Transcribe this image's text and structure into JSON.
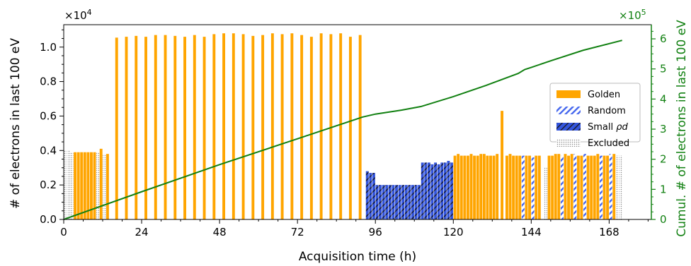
{
  "chart_data": {
    "type": "bar",
    "xlabel": "Acquisition time (h)",
    "ylabel": "# of electrons in last 100 eV",
    "y2label": "Cumul. # of electrons in last 100 eV",
    "y_multiplier": "×10^4",
    "y2_multiplier": "×10^5",
    "xlim": [
      0,
      181
    ],
    "ylim": [
      0,
      1.13
    ],
    "y2lim": [
      0,
      6.47
    ],
    "x_ticks": [
      0,
      24,
      48,
      72,
      96,
      120,
      144,
      168
    ],
    "y_ticks": [
      "0.0",
      "0.2",
      "0.4",
      "0.6",
      "0.8",
      "1.0"
    ],
    "y2_ticks": [
      "0",
      "1",
      "2",
      "3",
      "4",
      "5",
      "6"
    ],
    "bar_width_h": 0.85,
    "legend": {
      "placement": "right",
      "entries": [
        {
          "label": "Golden",
          "style": "golden"
        },
        {
          "label": "Random",
          "style": "random"
        },
        {
          "label": "Small ρd",
          "style": "small"
        },
        {
          "label": "Excluded",
          "style": "excluded"
        }
      ]
    },
    "colors": {
      "golden": "#FFA500",
      "random": "#4466EE",
      "small": "#3355DD",
      "excluded": "#888888",
      "cumulative": "#118011"
    },
    "bars": [
      {
        "x": 0.5,
        "v": 0.4,
        "c": "excluded"
      },
      {
        "x": 1.5,
        "v": 0.4,
        "c": "excluded"
      },
      {
        "x": 2.5,
        "v": 0.39,
        "c": "excluded"
      },
      {
        "x": 3.5,
        "v": 0.39,
        "c": "golden"
      },
      {
        "x": 4.5,
        "v": 0.39,
        "c": "golden"
      },
      {
        "x": 5.5,
        "v": 0.39,
        "c": "golden"
      },
      {
        "x": 6.5,
        "v": 0.39,
        "c": "golden"
      },
      {
        "x": 7.5,
        "v": 0.39,
        "c": "golden"
      },
      {
        "x": 8.5,
        "v": 0.39,
        "c": "golden"
      },
      {
        "x": 9.5,
        "v": 0.39,
        "c": "golden"
      },
      {
        "x": 10.5,
        "v": 0.39,
        "c": "excluded"
      },
      {
        "x": 11.5,
        "v": 0.41,
        "c": "golden"
      },
      {
        "x": 12.5,
        "v": 0.38,
        "c": "excluded"
      },
      {
        "x": 13.5,
        "v": 0.38,
        "c": "golden"
      },
      {
        "x": 16.3,
        "v": 1.055,
        "c": "golden"
      },
      {
        "x": 19.3,
        "v": 1.06,
        "c": "golden"
      },
      {
        "x": 22.3,
        "v": 1.065,
        "c": "golden"
      },
      {
        "x": 25.3,
        "v": 1.06,
        "c": "golden"
      },
      {
        "x": 28.3,
        "v": 1.07,
        "c": "golden"
      },
      {
        "x": 31.3,
        "v": 1.07,
        "c": "golden"
      },
      {
        "x": 34.3,
        "v": 1.065,
        "c": "golden"
      },
      {
        "x": 37.3,
        "v": 1.06,
        "c": "golden"
      },
      {
        "x": 40.3,
        "v": 1.07,
        "c": "golden"
      },
      {
        "x": 43.3,
        "v": 1.06,
        "c": "golden"
      },
      {
        "x": 46.3,
        "v": 1.075,
        "c": "golden"
      },
      {
        "x": 49.3,
        "v": 1.08,
        "c": "golden"
      },
      {
        "x": 52.3,
        "v": 1.08,
        "c": "golden"
      },
      {
        "x": 55.3,
        "v": 1.075,
        "c": "golden"
      },
      {
        "x": 58.3,
        "v": 1.065,
        "c": "golden"
      },
      {
        "x": 61.3,
        "v": 1.07,
        "c": "golden"
      },
      {
        "x": 64.3,
        "v": 1.08,
        "c": "golden"
      },
      {
        "x": 67.3,
        "v": 1.075,
        "c": "golden"
      },
      {
        "x": 70.3,
        "v": 1.08,
        "c": "golden"
      },
      {
        "x": 73.3,
        "v": 1.07,
        "c": "golden"
      },
      {
        "x": 76.3,
        "v": 1.06,
        "c": "golden"
      },
      {
        "x": 79.3,
        "v": 1.08,
        "c": "golden"
      },
      {
        "x": 82.3,
        "v": 1.075,
        "c": "golden"
      },
      {
        "x": 85.3,
        "v": 1.08,
        "c": "golden"
      },
      {
        "x": 88.3,
        "v": 1.06,
        "c": "golden"
      },
      {
        "x": 91.3,
        "v": 1.07,
        "c": "golden"
      },
      {
        "x": 93.5,
        "v": 0.28,
        "c": "small"
      },
      {
        "x": 94.5,
        "v": 0.27,
        "c": "small"
      },
      {
        "x": 95.5,
        "v": 0.27,
        "c": "small"
      },
      {
        "x": 96.5,
        "v": 0.2,
        "c": "small"
      },
      {
        "x": 97.5,
        "v": 0.2,
        "c": "small"
      },
      {
        "x": 98.5,
        "v": 0.2,
        "c": "small"
      },
      {
        "x": 99.5,
        "v": 0.2,
        "c": "small"
      },
      {
        "x": 100.5,
        "v": 0.2,
        "c": "small"
      },
      {
        "x": 101.5,
        "v": 0.2,
        "c": "small"
      },
      {
        "x": 102.5,
        "v": 0.2,
        "c": "small"
      },
      {
        "x": 103.5,
        "v": 0.2,
        "c": "small"
      },
      {
        "x": 104.5,
        "v": 0.2,
        "c": "small"
      },
      {
        "x": 105.5,
        "v": 0.2,
        "c": "small"
      },
      {
        "x": 106.5,
        "v": 0.2,
        "c": "small"
      },
      {
        "x": 107.5,
        "v": 0.2,
        "c": "small"
      },
      {
        "x": 108.5,
        "v": 0.2,
        "c": "small"
      },
      {
        "x": 109.5,
        "v": 0.2,
        "c": "small"
      },
      {
        "x": 110.5,
        "v": 0.33,
        "c": "small"
      },
      {
        "x": 111.5,
        "v": 0.33,
        "c": "small"
      },
      {
        "x": 112.5,
        "v": 0.33,
        "c": "small"
      },
      {
        "x": 113.5,
        "v": 0.32,
        "c": "small"
      },
      {
        "x": 114.5,
        "v": 0.33,
        "c": "small"
      },
      {
        "x": 115.5,
        "v": 0.32,
        "c": "small"
      },
      {
        "x": 116.5,
        "v": 0.33,
        "c": "small"
      },
      {
        "x": 117.5,
        "v": 0.33,
        "c": "small"
      },
      {
        "x": 118.5,
        "v": 0.34,
        "c": "small"
      },
      {
        "x": 119.5,
        "v": 0.33,
        "c": "small"
      },
      {
        "x": 120.5,
        "v": 0.37,
        "c": "golden"
      },
      {
        "x": 121.5,
        "v": 0.38,
        "c": "golden"
      },
      {
        "x": 122.5,
        "v": 0.37,
        "c": "golden"
      },
      {
        "x": 123.5,
        "v": 0.37,
        "c": "golden"
      },
      {
        "x": 124.5,
        "v": 0.37,
        "c": "golden"
      },
      {
        "x": 125.5,
        "v": 0.38,
        "c": "golden"
      },
      {
        "x": 126.5,
        "v": 0.37,
        "c": "golden"
      },
      {
        "x": 127.5,
        "v": 0.37,
        "c": "golden"
      },
      {
        "x": 128.5,
        "v": 0.38,
        "c": "golden"
      },
      {
        "x": 129.5,
        "v": 0.38,
        "c": "golden"
      },
      {
        "x": 130.5,
        "v": 0.37,
        "c": "golden"
      },
      {
        "x": 131.5,
        "v": 0.37,
        "c": "golden"
      },
      {
        "x": 132.5,
        "v": 0.37,
        "c": "golden"
      },
      {
        "x": 133.5,
        "v": 0.38,
        "c": "golden"
      },
      {
        "x": 135.0,
        "v": 0.63,
        "c": "golden"
      },
      {
        "x": 136.5,
        "v": 0.37,
        "c": "golden"
      },
      {
        "x": 137.5,
        "v": 0.38,
        "c": "golden"
      },
      {
        "x": 138.5,
        "v": 0.37,
        "c": "golden"
      },
      {
        "x": 139.5,
        "v": 0.37,
        "c": "golden"
      },
      {
        "x": 140.5,
        "v": 0.37,
        "c": "golden"
      },
      {
        "x": 141.5,
        "v": 0.37,
        "c": "random"
      },
      {
        "x": 142.5,
        "v": 0.37,
        "c": "golden"
      },
      {
        "x": 143.5,
        "v": 0.37,
        "c": "golden"
      },
      {
        "x": 144.5,
        "v": 0.36,
        "c": "random"
      },
      {
        "x": 145.5,
        "v": 0.37,
        "c": "golden"
      },
      {
        "x": 146.5,
        "v": 0.37,
        "c": "golden"
      },
      {
        "x": 148.5,
        "v": 0.3,
        "c": "excluded"
      },
      {
        "x": 149.5,
        "v": 0.37,
        "c": "golden"
      },
      {
        "x": 150.5,
        "v": 0.37,
        "c": "golden"
      },
      {
        "x": 151.5,
        "v": 0.38,
        "c": "golden"
      },
      {
        "x": 152.5,
        "v": 0.38,
        "c": "golden"
      },
      {
        "x": 153.5,
        "v": 0.37,
        "c": "random"
      },
      {
        "x": 154.5,
        "v": 0.38,
        "c": "golden"
      },
      {
        "x": 155.5,
        "v": 0.37,
        "c": "golden"
      },
      {
        "x": 156.5,
        "v": 0.38,
        "c": "golden"
      },
      {
        "x": 157.5,
        "v": 0.38,
        "c": "random"
      },
      {
        "x": 158.5,
        "v": 0.37,
        "c": "golden"
      },
      {
        "x": 159.5,
        "v": 0.37,
        "c": "golden"
      },
      {
        "x": 160.5,
        "v": 0.38,
        "c": "random"
      },
      {
        "x": 161.5,
        "v": 0.37,
        "c": "golden"
      },
      {
        "x": 162.5,
        "v": 0.37,
        "c": "golden"
      },
      {
        "x": 163.5,
        "v": 0.37,
        "c": "golden"
      },
      {
        "x": 164.5,
        "v": 0.38,
        "c": "golden"
      },
      {
        "x": 165.5,
        "v": 0.37,
        "c": "random"
      },
      {
        "x": 166.5,
        "v": 0.37,
        "c": "golden"
      },
      {
        "x": 167.5,
        "v": 0.37,
        "c": "golden"
      },
      {
        "x": 168.5,
        "v": 0.38,
        "c": "random"
      },
      {
        "x": 169.5,
        "v": 0.38,
        "c": "golden"
      },
      {
        "x": 170.5,
        "v": 0.37,
        "c": "excluded"
      },
      {
        "x": 171.5,
        "v": 0.37,
        "c": "excluded"
      }
    ],
    "cumulative": {
      "x": [
        0,
        24,
        48,
        72,
        92,
        96,
        104,
        110,
        120,
        130,
        140,
        142,
        144,
        150,
        160,
        172
      ],
      "y": [
        0,
        0.92,
        1.82,
        2.68,
        3.4,
        3.5,
        3.63,
        3.75,
        4.08,
        4.45,
        4.85,
        4.98,
        5.05,
        5.27,
        5.62,
        5.95
      ]
    }
  }
}
